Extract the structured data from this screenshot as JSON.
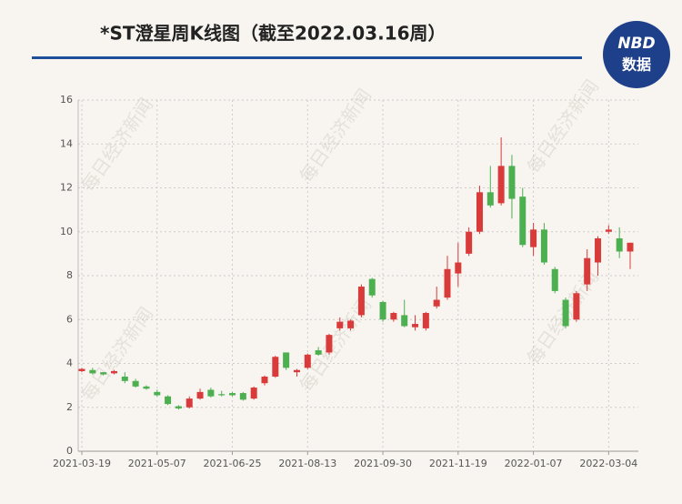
{
  "chart_data": {
    "type": "candlestick",
    "title": "*ST澄星周K线图（截至2022.03.16周）",
    "watermark": "每日经济新闻",
    "logo": {
      "top": "NBD",
      "bottom": "数据"
    },
    "up_color": "#d93a3a",
    "down_color": "#4caf50",
    "grid": true,
    "categories": [
      "2021-03-19",
      null,
      null,
      null,
      null,
      null,
      null,
      "2021-05-07",
      null,
      null,
      null,
      null,
      null,
      null,
      "2021-06-25",
      null,
      null,
      null,
      null,
      null,
      null,
      "2021-08-13",
      null,
      null,
      null,
      null,
      null,
      null,
      "2021-09-30",
      null,
      null,
      null,
      null,
      null,
      null,
      "2021-11-19",
      null,
      null,
      null,
      null,
      null,
      null,
      "2022-01-07",
      null,
      null,
      null,
      null,
      null,
      null,
      "2022-03-04",
      null,
      null
    ],
    "open": [
      3.65,
      3.7,
      3.6,
      3.55,
      3.4,
      3.2,
      2.95,
      2.7,
      2.5,
      2.05,
      2.0,
      2.4,
      2.8,
      2.6,
      2.65,
      2.65,
      2.4,
      3.1,
      3.4,
      4.5,
      3.6,
      3.8,
      4.6,
      4.5,
      5.6,
      5.6,
      6.2,
      7.85,
      6.8,
      6.0,
      6.2,
      5.65,
      5.6,
      6.6,
      7.0,
      8.1,
      9.0,
      10.0,
      11.8,
      11.3,
      13.0,
      11.6,
      9.3,
      10.1,
      8.3,
      6.9,
      6.0,
      7.6,
      8.6,
      10.0,
      9.7,
      9.1
    ],
    "high": [
      3.8,
      3.8,
      3.6,
      3.7,
      3.6,
      3.3,
      3.0,
      2.8,
      2.55,
      2.1,
      2.5,
      2.85,
      2.9,
      2.75,
      2.7,
      2.7,
      2.95,
      3.45,
      4.35,
      4.5,
      3.75,
      4.45,
      4.75,
      5.35,
      6.1,
      6.0,
      7.6,
      7.9,
      6.85,
      6.35,
      6.9,
      6.2,
      6.35,
      7.5,
      8.9,
      9.5,
      10.2,
      12.1,
      13.0,
      14.3,
      13.5,
      12.0,
      10.4,
      10.4,
      8.4,
      7.0,
      7.3,
      9.2,
      9.8,
      10.3,
      10.2,
      9.5
    ],
    "low": [
      3.6,
      3.5,
      3.45,
      3.5,
      3.1,
      2.9,
      2.8,
      2.5,
      2.1,
      1.9,
      1.95,
      2.35,
      2.45,
      2.5,
      2.5,
      2.3,
      2.35,
      3.0,
      3.35,
      3.7,
      3.4,
      3.75,
      4.35,
      4.4,
      5.5,
      5.5,
      6.1,
      7.0,
      5.9,
      5.9,
      5.65,
      5.5,
      5.5,
      6.5,
      6.9,
      7.5,
      8.9,
      9.9,
      11.1,
      11.2,
      10.6,
      9.3,
      8.9,
      8.5,
      7.2,
      5.6,
      5.9,
      7.3,
      8.0,
      9.9,
      8.8,
      8.3
    ],
    "close": [
      3.75,
      3.55,
      3.5,
      3.65,
      3.2,
      2.95,
      2.85,
      2.55,
      2.15,
      1.95,
      2.4,
      2.7,
      2.5,
      2.55,
      2.55,
      2.35,
      2.9,
      3.4,
      4.3,
      3.8,
      3.7,
      4.4,
      4.4,
      5.3,
      5.9,
      5.95,
      7.5,
      7.1,
      6.0,
      6.3,
      5.7,
      5.8,
      6.3,
      6.9,
      8.3,
      8.6,
      10.0,
      11.8,
      11.2,
      13.0,
      11.5,
      9.4,
      10.1,
      8.6,
      7.3,
      5.7,
      7.2,
      8.8,
      9.7,
      10.1,
      9.1,
      9.5
    ],
    "ylim": [
      0,
      16
    ],
    "yticks": [
      0,
      2,
      4,
      6,
      8,
      10,
      12,
      14,
      16
    ]
  }
}
